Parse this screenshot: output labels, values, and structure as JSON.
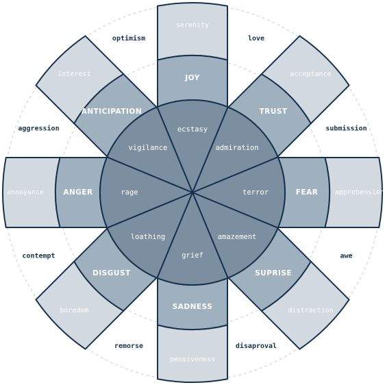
{
  "colors": {
    "outline": "#16324f",
    "guide": "#cfd6dd",
    "core_fill": "#7b8fa1",
    "basic_fill": "#9fb0bf",
    "outer_fill": "#d2d9df"
  },
  "petals": [
    {
      "core": "ecstasy",
      "basic": "JOY",
      "outer": "serenity"
    },
    {
      "core": "admiration",
      "basic": "TRUST",
      "outer": "acceptance"
    },
    {
      "core": "terror",
      "basic": "FEAR",
      "outer": "apprehension"
    },
    {
      "core": "amazement",
      "basic": "SUPRISE",
      "outer": "distraction"
    },
    {
      "core": "grief",
      "basic": "SADNESS",
      "outer": "pensiveness"
    },
    {
      "core": "loathing",
      "basic": "DISGUST",
      "outer": "boredom"
    },
    {
      "core": "rage",
      "basic": "ANGER",
      "outer": "annoyance"
    },
    {
      "core": "vigilance",
      "basic": "ANTICIPATION",
      "outer": "interest"
    }
  ],
  "dyads": [
    "love",
    "submission",
    "awe",
    "disaproval",
    "remorse",
    "contempt",
    "aggression",
    "optimism"
  ]
}
